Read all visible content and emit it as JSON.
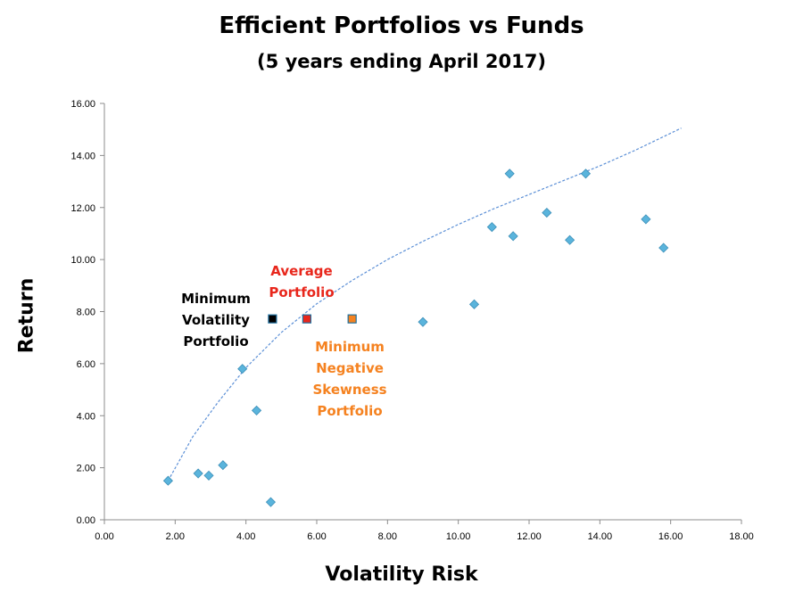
{
  "chart_data": {
    "type": "scatter",
    "title": "Efficient Portfolios vs Funds",
    "subtitle": "(5 years ending April 2017)",
    "xlabel": "Volatility Risk",
    "ylabel": "Return",
    "xlim": [
      0,
      18
    ],
    "ylim": [
      0,
      16
    ],
    "x_ticks": [
      "0.00",
      "2.00",
      "4.00",
      "6.00",
      "8.00",
      "10.00",
      "12.00",
      "14.00",
      "16.00",
      "18.00"
    ],
    "y_ticks": [
      "0.00",
      "2.00",
      "4.00",
      "6.00",
      "8.00",
      "10.00",
      "12.00",
      "14.00",
      "16.00"
    ],
    "grid": false,
    "legend": "none",
    "funds_color": "#5ab4dc",
    "frontier_color": "#5b8fd6",
    "series": [
      {
        "marker": "diamond",
        "points": [
          {
            "x": 1.8,
            "y": 1.5
          },
          {
            "x": 2.65,
            "y": 1.78
          },
          {
            "x": 2.95,
            "y": 1.7
          },
          {
            "x": 3.35,
            "y": 2.1
          },
          {
            "x": 3.9,
            "y": 5.8
          },
          {
            "x": 4.3,
            "y": 4.2
          },
          {
            "x": 4.7,
            "y": 0.68
          },
          {
            "x": 9.0,
            "y": 7.6
          },
          {
            "x": 10.45,
            "y": 8.28
          },
          {
            "x": 10.95,
            "y": 11.25
          },
          {
            "x": 11.45,
            "y": 13.3
          },
          {
            "x": 11.55,
            "y": 10.9
          },
          {
            "x": 12.5,
            "y": 11.8
          },
          {
            "x": 13.15,
            "y": 10.75
          },
          {
            "x": 13.6,
            "y": 13.3
          },
          {
            "x": 15.3,
            "y": 11.55
          },
          {
            "x": 15.8,
            "y": 10.45
          }
        ]
      }
    ],
    "frontier": [
      {
        "x": 1.8,
        "y": 1.5
      },
      {
        "x": 2.5,
        "y": 3.2
      },
      {
        "x": 3.2,
        "y": 4.5
      },
      {
        "x": 4.0,
        "y": 5.85
      },
      {
        "x": 5.0,
        "y": 7.2
      },
      {
        "x": 6.0,
        "y": 8.3
      },
      {
        "x": 7.0,
        "y": 9.2
      },
      {
        "x": 8.0,
        "y": 10.0
      },
      {
        "x": 9.0,
        "y": 10.7
      },
      {
        "x": 10.0,
        "y": 11.35
      },
      {
        "x": 11.0,
        "y": 11.95
      },
      {
        "x": 12.0,
        "y": 12.5
      },
      {
        "x": 13.0,
        "y": 13.05
      },
      {
        "x": 14.0,
        "y": 13.6
      },
      {
        "x": 15.0,
        "y": 14.2
      },
      {
        "x": 16.3,
        "y": 15.05
      }
    ],
    "portfolios": [
      {
        "label_lines": [
          "Minimum",
          "Volatility",
          "Portfolio"
        ],
        "x": 4.75,
        "y": 7.72,
        "color": "#000000",
        "label_color": "#000000"
      },
      {
        "label_lines": [
          "Average",
          "Portfolio"
        ],
        "x": 5.72,
        "y": 7.72,
        "color": "#e8271c",
        "label_color": "#e8271c"
      },
      {
        "label_lines": [
          "Minimum",
          "Negative",
          "Skewness",
          "Portfolio"
        ],
        "x": 7.0,
        "y": 7.72,
        "color": "#f58220",
        "label_color": "#f58220"
      }
    ]
  }
}
